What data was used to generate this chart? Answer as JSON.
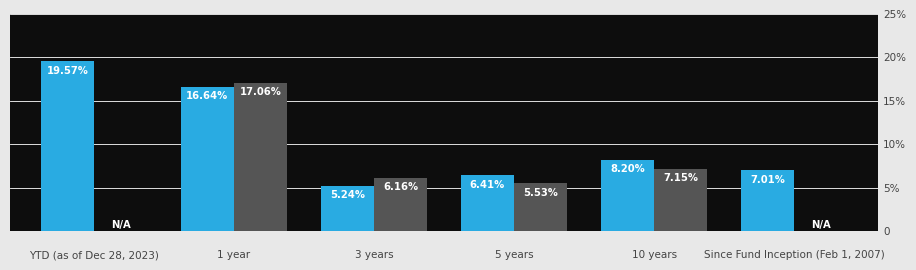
{
  "categories": [
    "YTD (as of Dec 28, 2023)",
    "1 year",
    "3 years",
    "5 years",
    "10 years",
    "Since Fund Inception (Feb 1, 2007)"
  ],
  "blue_values": [
    19.57,
    16.64,
    5.24,
    6.41,
    8.2,
    7.01
  ],
  "gray_values": [
    null,
    17.06,
    6.16,
    5.53,
    7.15,
    null
  ],
  "blue_labels": [
    "19.57%",
    "16.64%",
    "5.24%",
    "6.41%",
    "8.20%",
    "7.01%"
  ],
  "gray_labels": [
    "N/A",
    "17.06%",
    "6.16%",
    "5.53%",
    "7.15%",
    "N/A"
  ],
  "blue_color": "#29abe2",
  "gray_color": "#555555",
  "chart_bg": "#0d0d0d",
  "outer_bg": "#e8e8e8",
  "text_color_white": "#ffffff",
  "text_color_dark": "#444444",
  "ylim": [
    0,
    25
  ],
  "yticks": [
    0,
    5,
    10,
    15,
    20,
    25
  ],
  "ytick_labels": [
    "0",
    "5%",
    "10%",
    "15%",
    "20%",
    "25%"
  ],
  "bar_width": 0.38,
  "label_font_size": 7.2,
  "tick_font_size": 7.5,
  "grid_color": "#ffffff",
  "grid_lw": 0.6
}
